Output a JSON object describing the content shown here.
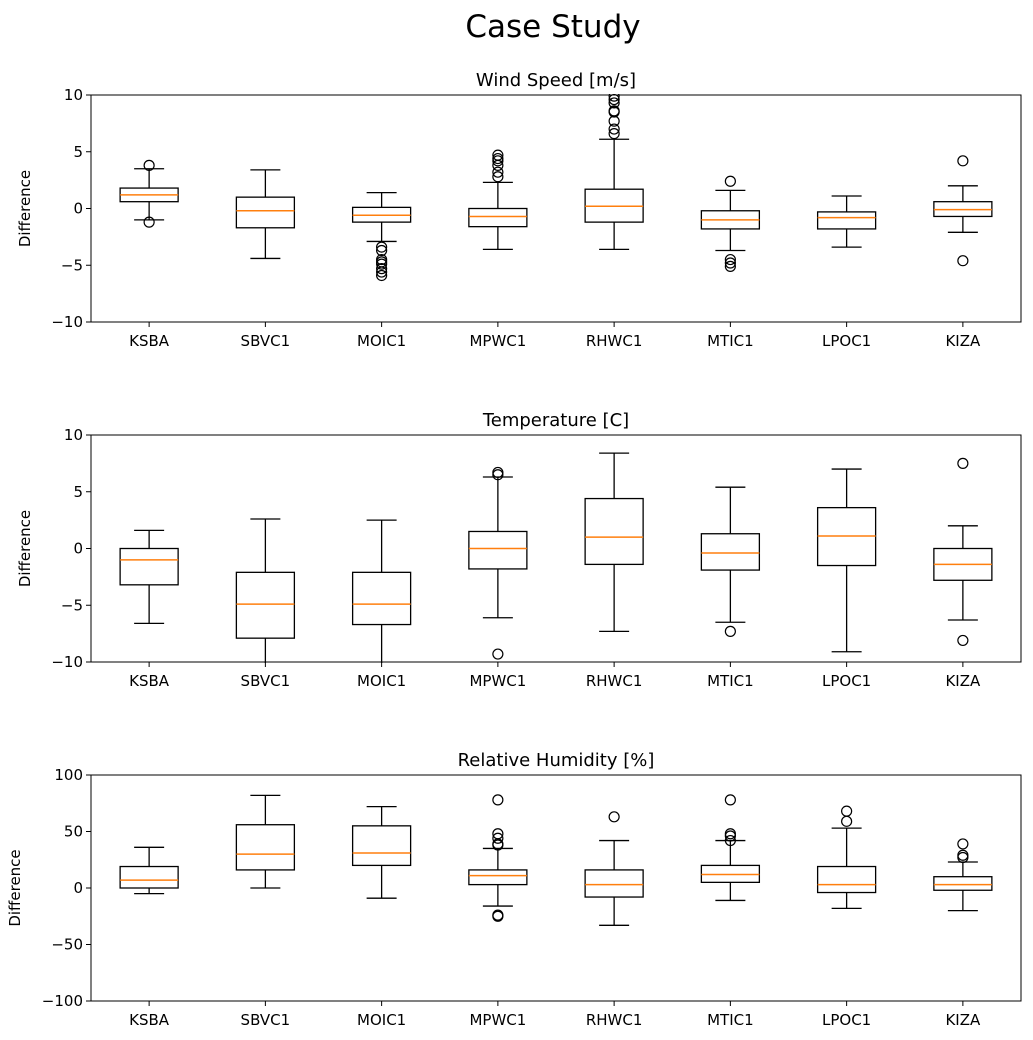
{
  "figure": {
    "title": "Case Study"
  },
  "chart_data": [
    {
      "type": "box",
      "title": "Wind Speed [m/s]",
      "xlabel": "",
      "ylabel": "Difference",
      "ylim": [
        -10,
        10
      ],
      "yticks": [
        -10,
        -5,
        0,
        5,
        10
      ],
      "ytick_labels": [
        "−10",
        "−5",
        "0",
        "5",
        "10"
      ],
      "categories": [
        "KSBA",
        "SBVC1",
        "MOIC1",
        "MPWC1",
        "RHWC1",
        "MTIC1",
        "LPOC1",
        "KIZA"
      ],
      "boxes": [
        {
          "whislo": -1.0,
          "q1": 0.6,
          "median": 1.2,
          "q3": 1.8,
          "whishi": 3.5,
          "fliers": [
            3.8,
            -1.2
          ]
        },
        {
          "whislo": -4.4,
          "q1": -1.7,
          "median": -0.2,
          "q3": 1.0,
          "whishi": 3.4,
          "fliers": []
        },
        {
          "whislo": -2.9,
          "q1": -1.2,
          "median": -0.6,
          "q3": 0.1,
          "whishi": 1.4,
          "fliers": [
            -3.4,
            -3.7,
            -4.5,
            -4.7,
            -4.9,
            -5.3,
            -5.6,
            -5.9
          ]
        },
        {
          "whislo": -3.6,
          "q1": -1.6,
          "median": -0.7,
          "q3": 0.0,
          "whishi": 2.3,
          "fliers": [
            2.8,
            3.2,
            3.8,
            4.2,
            4.4,
            4.7
          ]
        },
        {
          "whislo": -3.6,
          "q1": -1.2,
          "median": 0.2,
          "q3": 1.7,
          "whishi": 6.1,
          "fliers": [
            6.6,
            7.0,
            7.7,
            8.5,
            8.6,
            9.3,
            9.6,
            9.9
          ]
        },
        {
          "whislo": -3.7,
          "q1": -1.8,
          "median": -1.0,
          "q3": -0.2,
          "whishi": 1.6,
          "fliers": [
            2.4,
            -4.5,
            -4.8,
            -5.1
          ]
        },
        {
          "whislo": -3.4,
          "q1": -1.8,
          "median": -0.8,
          "q3": -0.3,
          "whishi": 1.1,
          "fliers": []
        },
        {
          "whislo": -2.1,
          "q1": -0.7,
          "median": -0.1,
          "q3": 0.6,
          "whishi": 2.0,
          "fliers": [
            4.2,
            -4.6
          ]
        }
      ]
    },
    {
      "type": "box",
      "title": "Temperature [C]",
      "xlabel": "",
      "ylabel": "Difference",
      "ylim": [
        -10,
        10
      ],
      "yticks": [
        -10,
        -5,
        0,
        5,
        10
      ],
      "ytick_labels": [
        "−10",
        "−5",
        "0",
        "5",
        "10"
      ],
      "categories": [
        "KSBA",
        "SBVC1",
        "MOIC1",
        "MPWC1",
        "RHWC1",
        "MTIC1",
        "LPOC1",
        "KIZA"
      ],
      "boxes": [
        {
          "whislo": -6.6,
          "q1": -3.2,
          "median": -1.0,
          "q3": 0.0,
          "whishi": 1.6,
          "fliers": []
        },
        {
          "whislo": -10.5,
          "q1": -7.9,
          "median": -4.9,
          "q3": -2.1,
          "whishi": 2.6,
          "fliers": []
        },
        {
          "whislo": -10.5,
          "q1": -6.7,
          "median": -4.9,
          "q3": -2.1,
          "whishi": 2.5,
          "fliers": []
        },
        {
          "whislo": -6.1,
          "q1": -1.8,
          "median": 0.0,
          "q3": 1.5,
          "whishi": 6.3,
          "fliers": [
            6.5,
            6.7,
            -9.3
          ]
        },
        {
          "whislo": -7.3,
          "q1": -1.4,
          "median": 1.0,
          "q3": 4.4,
          "whishi": 8.4,
          "fliers": []
        },
        {
          "whislo": -6.5,
          "q1": -1.9,
          "median": -0.4,
          "q3": 1.3,
          "whishi": 5.4,
          "fliers": [
            -7.3
          ]
        },
        {
          "whislo": -9.1,
          "q1": -1.5,
          "median": 1.1,
          "q3": 3.6,
          "whishi": 7.0,
          "fliers": []
        },
        {
          "whislo": -6.3,
          "q1": -2.8,
          "median": -1.4,
          "q3": 0.0,
          "whishi": 2.0,
          "fliers": [
            7.5,
            -8.1
          ]
        }
      ]
    },
    {
      "type": "box",
      "title": "Relative Humidity [%]",
      "xlabel": "",
      "ylabel": "Difference",
      "ylim": [
        -100,
        100
      ],
      "yticks": [
        -100,
        -50,
        0,
        50,
        100
      ],
      "ytick_labels": [
        "−100",
        "−50",
        "0",
        "50",
        "100"
      ],
      "categories": [
        "KSBA",
        "SBVC1",
        "MOIC1",
        "MPWC1",
        "RHWC1",
        "MTIC1",
        "LPOC1",
        "KIZA"
      ],
      "boxes": [
        {
          "whislo": -5,
          "q1": 0,
          "median": 7,
          "q3": 19,
          "whishi": 36,
          "fliers": []
        },
        {
          "whislo": 0,
          "q1": 16,
          "median": 30,
          "q3": 56,
          "whishi": 82,
          "fliers": []
        },
        {
          "whislo": -9,
          "q1": 20,
          "median": 31,
          "q3": 55,
          "whishi": 72,
          "fliers": []
        },
        {
          "whislo": -16,
          "q1": 3,
          "median": 11,
          "q3": 16,
          "whishi": 35,
          "fliers": [
            78,
            48,
            44,
            39,
            38,
            -24,
            -25
          ]
        },
        {
          "whislo": -33,
          "q1": -8,
          "median": 3,
          "q3": 16,
          "whishi": 42,
          "fliers": [
            63
          ]
        },
        {
          "whislo": -11,
          "q1": 5,
          "median": 12,
          "q3": 20,
          "whishi": 42,
          "fliers": [
            78,
            48,
            46,
            42
          ]
        },
        {
          "whislo": -18,
          "q1": -4,
          "median": 3,
          "q3": 19,
          "whishi": 53,
          "fliers": [
            68,
            59
          ]
        },
        {
          "whislo": -20,
          "q1": -2,
          "median": 3,
          "q3": 10,
          "whishi": 23,
          "fliers": [
            39,
            29,
            27
          ]
        }
      ]
    }
  ]
}
